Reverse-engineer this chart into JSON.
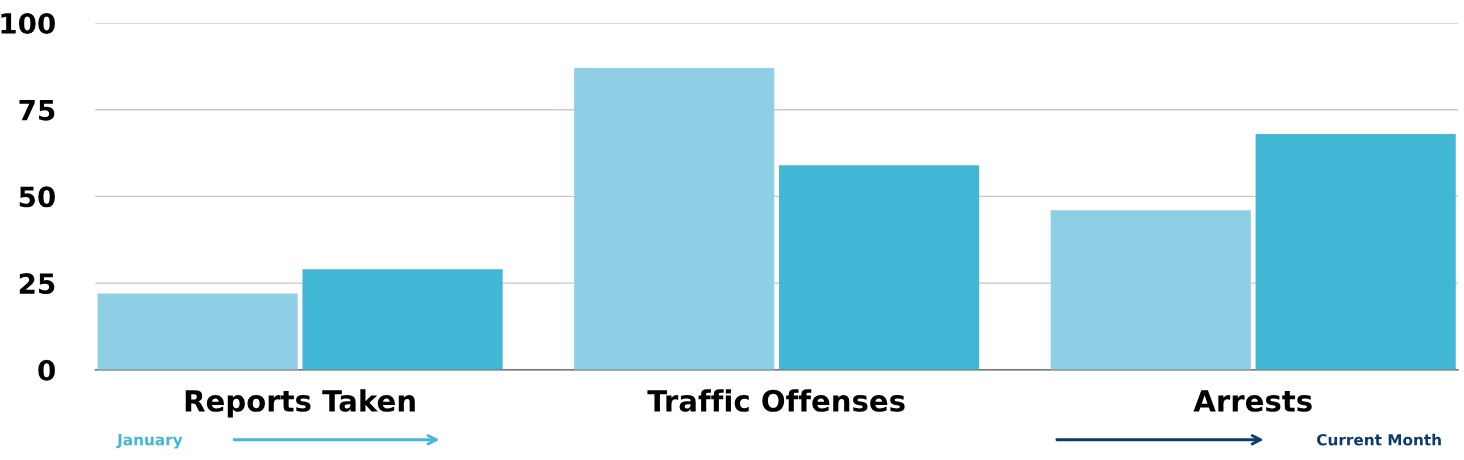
{
  "chart_data": {
    "type": "bar",
    "categories": [
      "Reports Taken",
      "Traffic Offenses",
      "Arrests"
    ],
    "series": [
      {
        "color": "#8fcfe6",
        "values": [
          22,
          87,
          46
        ]
      },
      {
        "color": "#43b7d6",
        "values": [
          29,
          59,
          68
        ]
      }
    ],
    "ylim": [
      0,
      100
    ],
    "yticks": [
      0,
      25,
      50,
      75,
      100
    ],
    "grid": "y",
    "annotations": [
      "January",
      "Current Month"
    ]
  }
}
